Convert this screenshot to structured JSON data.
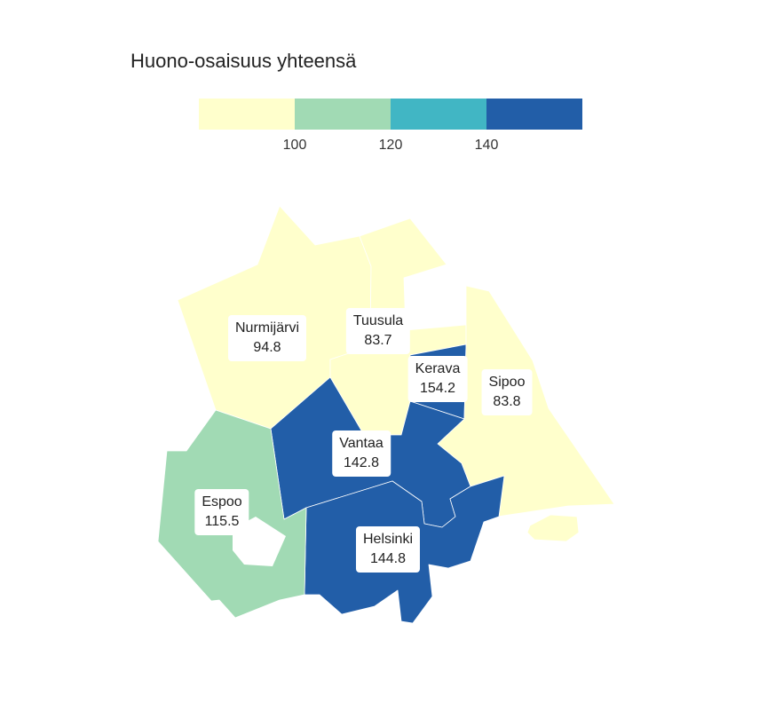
{
  "title": "Huono-osaisuus yhteensä",
  "legend": {
    "bins": [
      {
        "color": "#ffffcc",
        "label": ""
      },
      {
        "color": "#a1dab4",
        "label": "100"
      },
      {
        "color": "#41b6c4",
        "label": "120"
      },
      {
        "color": "#225ea8",
        "label": "140"
      }
    ]
  },
  "regions": [
    {
      "name": "Nurmijärvi",
      "value": "94.8",
      "color": "#ffffcc"
    },
    {
      "name": "Tuusula",
      "value": "83.7",
      "color": "#ffffcc"
    },
    {
      "name": "Kerava",
      "value": "154.2",
      "color": "#225ea8"
    },
    {
      "name": "Sipoo",
      "value": "83.8",
      "color": "#ffffcc"
    },
    {
      "name": "Vantaa",
      "value": "142.8",
      "color": "#225ea8"
    },
    {
      "name": "Espoo",
      "value": "115.5",
      "color": "#a1dab4"
    },
    {
      "name": "Helsinki",
      "value": "144.8",
      "color": "#225ea8"
    }
  ]
}
